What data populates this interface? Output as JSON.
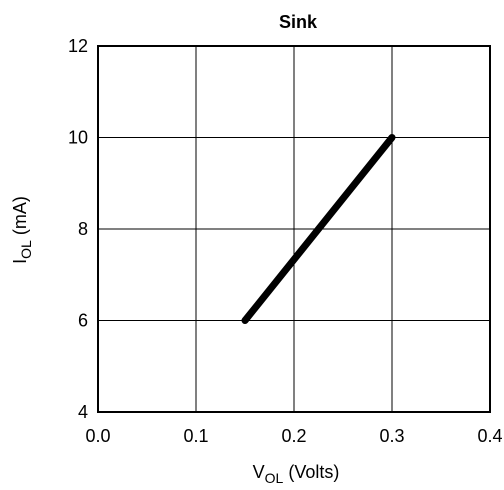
{
  "chart_data": {
    "type": "line",
    "title": "Sink",
    "xlabel": {
      "main": "V",
      "sub": "OL",
      "unit": " (Volts)"
    },
    "ylabel": {
      "main": "I",
      "sub": "OL",
      "unit": " (mA)"
    },
    "xlim": [
      0.0,
      0.4
    ],
    "ylim": [
      4,
      12
    ],
    "xticks": [
      0.0,
      0.1,
      0.2,
      0.3,
      0.4
    ],
    "xtick_labels": [
      "0.0",
      "0.1",
      "0.2",
      "0.3",
      "0.4"
    ],
    "yticks": [
      4,
      6,
      8,
      10,
      12
    ],
    "ytick_labels": [
      "4",
      "6",
      "8",
      "10",
      "12"
    ],
    "grid": true,
    "series": [
      {
        "x": [
          0.15,
          0.3
        ],
        "y": [
          6,
          10
        ],
        "color": "#000000"
      }
    ]
  }
}
